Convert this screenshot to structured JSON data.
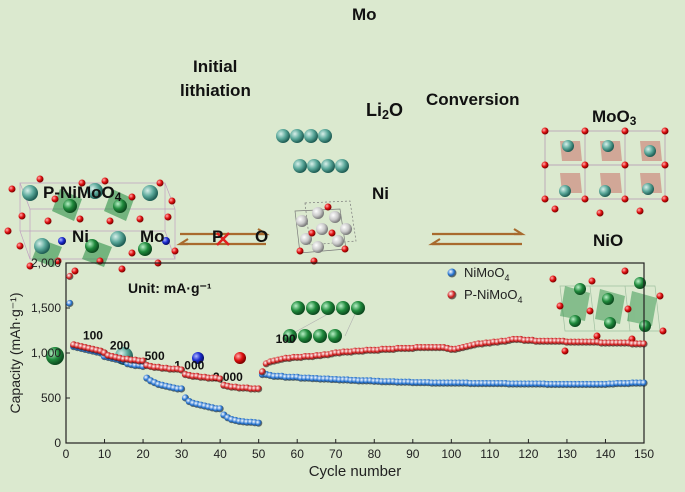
{
  "diagram": {
    "labels": {
      "mo": "Mo",
      "initial_line1": "Initial",
      "initial_line2": "lithiation",
      "li2o_main": "Li",
      "li2o_sub": "2",
      "li2o_tail": "O",
      "conversion": "Conversion",
      "moo3_main": "MoO",
      "moo3_sub": "3",
      "pnimoo4_main": "P-NiMoO",
      "pnimoo4_sub": "4",
      "ni": "Ni",
      "nio": "NiO"
    },
    "legend": {
      "items": [
        {
          "label": "Ni",
          "color": "#1f8a3c"
        },
        {
          "label": "Mo",
          "color": "#5aa89a"
        },
        {
          "label": "P",
          "color": "#1a2bd0"
        },
        {
          "label": "O",
          "color": "#e01010"
        }
      ]
    },
    "colors": {
      "arrow": "#a86a2e",
      "cross": "#e02020",
      "background": "#dbe9cf"
    }
  },
  "chart_data": {
    "type": "scatter",
    "xlabel": "Cycle number",
    "ylabel": "Capacity (mAh·g⁻¹)",
    "xlim": [
      0,
      150
    ],
    "ylim": [
      0,
      2000
    ],
    "xticks": [
      "0",
      "10",
      "20",
      "30",
      "40",
      "50",
      "60",
      "70",
      "80",
      "90",
      "100",
      "110",
      "120",
      "130",
      "140",
      "150"
    ],
    "yticks": [
      "0",
      "500",
      "1,000",
      "1,500",
      "2,000"
    ],
    "unit_note": "Unit: mA·g⁻¹",
    "rate_labels": [
      {
        "text": "100",
        "x": 7,
        "y": 1150
      },
      {
        "text": "200",
        "x": 14,
        "y": 1040
      },
      {
        "text": "500",
        "x": 23,
        "y": 920
      },
      {
        "text": "1,000",
        "x": 32,
        "y": 815
      },
      {
        "text": "2,000",
        "x": 42,
        "y": 690
      },
      {
        "text": "100",
        "x": 57,
        "y": 1110
      }
    ],
    "legend": {
      "position": "top-right"
    },
    "series": [
      {
        "name": "NiMoO4",
        "name_main": "NiMoO",
        "name_sub": "4",
        "color": "#1e6fd0",
        "x": [
          1,
          2,
          3,
          4,
          5,
          6,
          7,
          8,
          9,
          10,
          11,
          12,
          13,
          14,
          15,
          16,
          17,
          18,
          19,
          20,
          21,
          22,
          23,
          24,
          25,
          26,
          27,
          28,
          29,
          30,
          31,
          32,
          33,
          34,
          35,
          36,
          37,
          38,
          39,
          40,
          41,
          42,
          43,
          44,
          45,
          46,
          47,
          48,
          49,
          50,
          51,
          52,
          53,
          54,
          55,
          56,
          57,
          58,
          59,
          60,
          61,
          62,
          63,
          64,
          65,
          66,
          67,
          68,
          69,
          70,
          71,
          72,
          73,
          74,
          75,
          76,
          77,
          78,
          79,
          80,
          81,
          82,
          83,
          84,
          85,
          86,
          87,
          88,
          89,
          90,
          91,
          92,
          93,
          94,
          95,
          96,
          97,
          98,
          99,
          100,
          101,
          102,
          103,
          104,
          105,
          106,
          107,
          108,
          109,
          110,
          111,
          112,
          113,
          114,
          115,
          116,
          117,
          118,
          119,
          120,
          121,
          122,
          123,
          124,
          125,
          126,
          127,
          128,
          129,
          130,
          131,
          132,
          133,
          134,
          135,
          136,
          137,
          138,
          139,
          140,
          141,
          142,
          143,
          144,
          145,
          146,
          147,
          148,
          149,
          150
        ],
        "y": [
          1550,
          1070,
          1060,
          1050,
          1040,
          1030,
          1020,
          1010,
          1000,
          960,
          950,
          940,
          930,
          920,
          910,
          880,
          870,
          860,
          860,
          850,
          720,
          690,
          670,
          650,
          640,
          630,
          620,
          610,
          600,
          600,
          500,
          460,
          440,
          430,
          420,
          410,
          400,
          390,
          380,
          380,
          310,
          280,
          260,
          250,
          240,
          235,
          230,
          230,
          225,
          220,
          760,
          760,
          750,
          740,
          740,
          740,
          730,
          730,
          730,
          730,
          720,
          720,
          720,
          715,
          715,
          710,
          710,
          710,
          705,
          705,
          700,
          700,
          700,
          695,
          695,
          690,
          690,
          690,
          690,
          685,
          685,
          680,
          680,
          680,
          680,
          675,
          675,
          675,
          675,
          670,
          670,
          670,
          670,
          670,
          665,
          665,
          665,
          665,
          665,
          665,
          665,
          665,
          665,
          665,
          660,
          660,
          660,
          660,
          660,
          660,
          660,
          660,
          660,
          660,
          655,
          655,
          655,
          655,
          655,
          655,
          655,
          655,
          655,
          655,
          650,
          650,
          650,
          650,
          650,
          650,
          650,
          650,
          650,
          650,
          650,
          650,
          650,
          650,
          650,
          650,
          655,
          655,
          660,
          660,
          660,
          660,
          665,
          665,
          665,
          665
        ]
      },
      {
        "name": "P-NiMoO4",
        "name_main": "P-NiMoO",
        "name_sub": "4",
        "color": "#d21a1a",
        "x": [
          1,
          2,
          3,
          4,
          5,
          6,
          7,
          8,
          9,
          10,
          11,
          12,
          13,
          14,
          15,
          16,
          17,
          18,
          19,
          20,
          21,
          22,
          23,
          24,
          25,
          26,
          27,
          28,
          29,
          30,
          31,
          32,
          33,
          34,
          35,
          36,
          37,
          38,
          39,
          40,
          41,
          42,
          43,
          44,
          45,
          46,
          47,
          48,
          49,
          50,
          51,
          52,
          53,
          54,
          55,
          56,
          57,
          58,
          59,
          60,
          61,
          62,
          63,
          64,
          65,
          66,
          67,
          68,
          69,
          70,
          71,
          72,
          73,
          74,
          75,
          76,
          77,
          78,
          79,
          80,
          81,
          82,
          83,
          84,
          85,
          86,
          87,
          88,
          89,
          90,
          91,
          92,
          93,
          94,
          95,
          96,
          97,
          98,
          99,
          100,
          101,
          102,
          103,
          104,
          105,
          106,
          107,
          108,
          109,
          110,
          111,
          112,
          113,
          114,
          115,
          116,
          117,
          118,
          119,
          120,
          121,
          122,
          123,
          124,
          125,
          126,
          127,
          128,
          129,
          130,
          131,
          132,
          133,
          134,
          135,
          136,
          137,
          138,
          139,
          140,
          141,
          142,
          143,
          144,
          145,
          146,
          147,
          148,
          149,
          150
        ],
        "y": [
          1850,
          1090,
          1080,
          1070,
          1060,
          1050,
          1040,
          1030,
          1020,
          1000,
          970,
          960,
          950,
          940,
          930,
          930,
          920,
          920,
          910,
          910,
          860,
          850,
          840,
          840,
          830,
          830,
          820,
          820,
          820,
          810,
          760,
          750,
          740,
          740,
          730,
          730,
          720,
          720,
          720,
          710,
          640,
          630,
          620,
          620,
          610,
          610,
          610,
          600,
          600,
          600,
          790,
          880,
          900,
          910,
          920,
          930,
          940,
          940,
          950,
          950,
          950,
          960,
          960,
          960,
          970,
          970,
          980,
          980,
          990,
          1000,
          1000,
          1010,
          1010,
          1010,
          1020,
          1020,
          1020,
          1030,
          1030,
          1030,
          1030,
          1040,
          1040,
          1040,
          1040,
          1050,
          1050,
          1050,
          1050,
          1050,
          1060,
          1060,
          1060,
          1060,
          1060,
          1060,
          1060,
          1060,
          1050,
          1040,
          1040,
          1050,
          1060,
          1070,
          1080,
          1090,
          1100,
          1100,
          1110,
          1110,
          1120,
          1120,
          1130,
          1130,
          1140,
          1150,
          1150,
          1150,
          1140,
          1140,
          1140,
          1130,
          1130,
          1130,
          1130,
          1130,
          1130,
          1130,
          1130,
          1120,
          1120,
          1120,
          1120,
          1120,
          1120,
          1120,
          1120,
          1120,
          1110,
          1110,
          1110,
          1110,
          1110,
          1110,
          1110,
          1110,
          1100,
          1100,
          1100,
          1100
        ]
      }
    ]
  }
}
